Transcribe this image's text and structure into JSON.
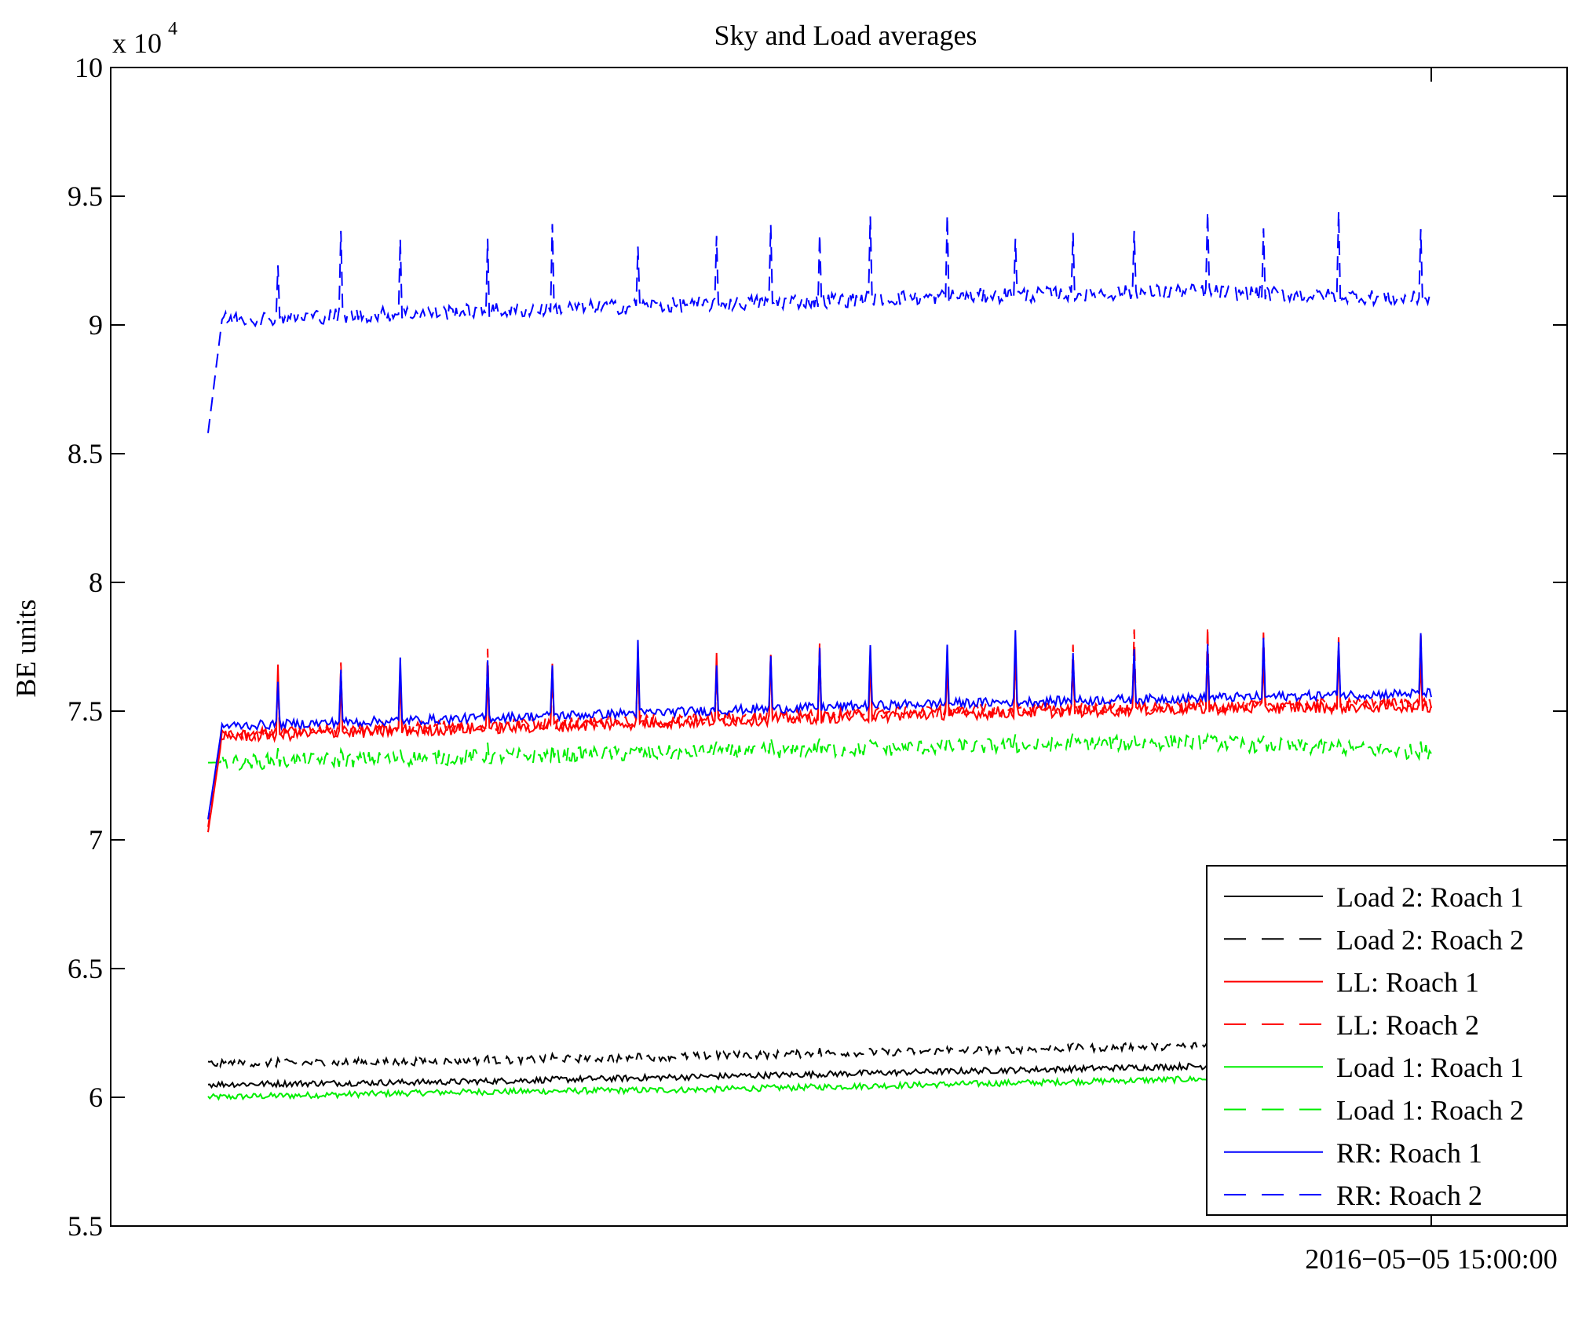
{
  "chart_data": {
    "type": "line",
    "title": "Sky and Load averages",
    "ylabel": "BE units",
    "xlabel": "",
    "y_exponent_label": "x 10",
    "y_exponent_power": "4",
    "ylim": [
      5.5,
      10
    ],
    "y_ticks": [
      {
        "value": 5.5,
        "label": "5.5"
      },
      {
        "value": 6.0,
        "label": "6"
      },
      {
        "value": 6.5,
        "label": "6.5"
      },
      {
        "value": 7.0,
        "label": "7"
      },
      {
        "value": 7.5,
        "label": "7.5"
      },
      {
        "value": 8.0,
        "label": "8"
      },
      {
        "value": 8.5,
        "label": "8.5"
      },
      {
        "value": 9.0,
        "label": "9"
      },
      {
        "value": 9.5,
        "label": "9.5"
      },
      {
        "value": 10.0,
        "label": "10"
      }
    ],
    "x_tick_label": "2016−05−05 15:00:00",
    "legend_position": "bottom-right",
    "grid": false,
    "series": [
      {
        "name": "Load 2: Roach 1",
        "color": "#000000",
        "dashed": false,
        "levels": [
          6.05,
          6.06,
          6.08,
          6.1,
          6.12,
          6.13
        ]
      },
      {
        "name": "Load 2: Roach 2",
        "color": "#000000",
        "dashed": true,
        "levels": [
          6.13,
          6.14,
          6.16,
          6.18,
          6.2,
          6.21
        ]
      },
      {
        "name": "LL: Roach 1",
        "color": "#ff0000",
        "dashed": false,
        "levels": [
          7.4,
          7.43,
          7.46,
          7.49,
          7.51,
          7.52
        ]
      },
      {
        "name": "LL: Roach 2",
        "color": "#ff0000",
        "dashed": true,
        "levels": [
          7.41,
          7.44,
          7.47,
          7.5,
          7.52,
          7.53
        ]
      },
      {
        "name": "Load 1: Roach 1",
        "color": "#00ee00",
        "dashed": false,
        "levels": [
          6.0,
          6.02,
          6.03,
          6.05,
          6.07,
          6.08
        ]
      },
      {
        "name": "Load 1: Roach 2",
        "color": "#00ee00",
        "dashed": true,
        "levels": [
          7.3,
          7.32,
          7.34,
          7.36,
          7.38,
          7.34
        ]
      },
      {
        "name": "RR: Roach 1",
        "color": "#0000ff",
        "dashed": false,
        "levels": [
          7.44,
          7.47,
          7.5,
          7.53,
          7.55,
          7.57
        ]
      },
      {
        "name": "RR: Roach 2",
        "color": "#0000ff",
        "dashed": true,
        "levels": [
          9.02,
          9.05,
          9.08,
          9.11,
          9.13,
          9.1
        ]
      }
    ]
  }
}
